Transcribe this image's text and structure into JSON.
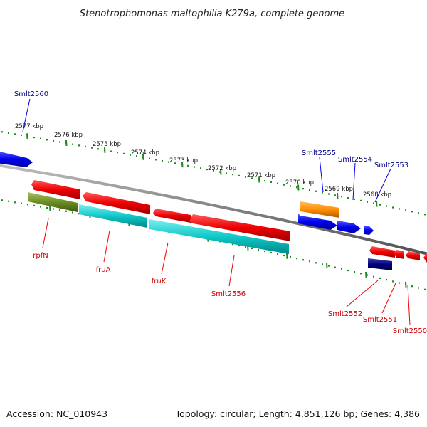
{
  "title": "Stenotrophomonas maltophilia K279a, complete genome",
  "footer": {
    "accession": "Accession: NC_010943",
    "topology": "Topology: circular; Length: 4,851,126 bp; Genes: 4,386"
  },
  "ticks": [
    "2577 kbp",
    "2576 kbp",
    "2575 kbp",
    "2574 kbp",
    "2573 kbp",
    "2572 kbp",
    "2571 kbp",
    "2570 kbp",
    "2569 kbp",
    "2568 kbp"
  ],
  "genes_top": [
    {
      "name": "Smlt2560",
      "color": "#0000ee"
    },
    {
      "name": "Smlt2555",
      "color": "#0000ee"
    },
    {
      "name": "Smlt2554",
      "color": "#0000ee"
    },
    {
      "name": "Smlt2553",
      "color": "#0000ee"
    }
  ],
  "genes_bottom": [
    {
      "name": "rpfN",
      "color": "#ee0000"
    },
    {
      "name": "fruA",
      "color": "#ee0000"
    },
    {
      "name": "fruK",
      "color": "#ee0000"
    },
    {
      "name": "Smlt2556",
      "color": "#ee0000"
    },
    {
      "name": "Smlt2552",
      "color": "#ee0000"
    },
    {
      "name": "Smlt2551",
      "color": "#ee0000"
    },
    {
      "name": "Smlt2550",
      "color": "#ee0000"
    }
  ],
  "colors": {
    "backbone": "#808080",
    "tick_track": "#1f8a1f",
    "red_gene": "#ee0000",
    "blue_gene": "#0000ee",
    "cyan_gene": "#00c8c8",
    "olive_gene": "#6b8e23",
    "orange_gene": "#ff8c00",
    "navy_gene": "#000080"
  }
}
